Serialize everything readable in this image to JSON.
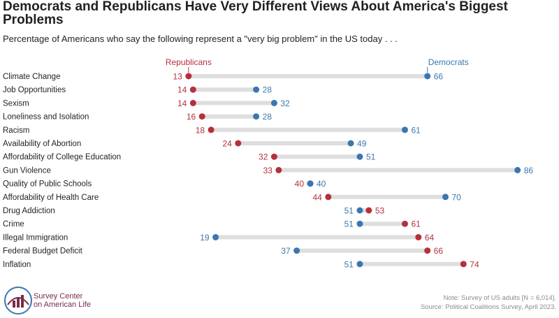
{
  "title": "Democrats and Republicans Have Very Different Views About America's Biggest Problems",
  "subtitle": "Percentage of Americans who say the following represent a \"very big problem\" in the US today . . .",
  "legend": {
    "republicans": "Republicans",
    "democrats": "Democrats"
  },
  "colors": {
    "republicans": "#b5303a",
    "democrats": "#3a77b0",
    "connector": "#dedede"
  },
  "note_lines": [
    "Note: Survey of US adults [N = 6,014].",
    "Source: Political Coalitions Survey, April 2023."
  ],
  "logo": {
    "line1": "Survey Center",
    "line2": "on American Life",
    "icon": "bar-chart-arch-logo-icon"
  },
  "chart_data": {
    "type": "dot-plot",
    "xlim": [
      0,
      100
    ],
    "categories": [
      "Climate Change",
      "Job Opportunities",
      "Sexism",
      "Loneliness and Isolation",
      "Racism",
      "Availability of Abortion",
      "Affordability of College Education",
      "Gun Violence",
      "Quality of Public Schools",
      "Affordability of Health Care",
      "Drug Addiction",
      "Crime",
      "Illegal Immigration",
      "Federal Budget Deficit",
      "Inflation"
    ],
    "series": [
      {
        "name": "Republicans",
        "values": [
          13,
          14,
          14,
          16,
          18,
          24,
          32,
          33,
          40,
          44,
          53,
          61,
          64,
          66,
          74
        ]
      },
      {
        "name": "Democrats",
        "values": [
          66,
          28,
          32,
          28,
          61,
          49,
          51,
          86,
          40,
          70,
          51,
          51,
          19,
          37,
          51
        ]
      }
    ]
  }
}
